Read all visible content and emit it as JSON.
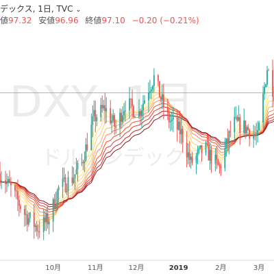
{
  "header": {
    "title": "デックス, 1日, TVC",
    "chevron": "⌄",
    "high_label": "値",
    "high_value": "97.32",
    "low_label": "安値",
    "low_value": "96.96",
    "close_label": "終値",
    "close_value": "97.10",
    "change": "−0.20 (−0.21%)"
  },
  "watermark": {
    "symbol": "DXY, 1日",
    "name": "ドルインデックス"
  },
  "colors": {
    "up": "#26a69a",
    "down": "#ef5350",
    "ribbon": [
      "#fff176",
      "#ffe082",
      "#ffcc80",
      "#ffb74d",
      "#ff8a65",
      "#f4511e",
      "#e53935",
      "#c62828",
      "#8e1b1b"
    ],
    "price_line": "#ef5350"
  },
  "chart_data": {
    "type": "candlestick",
    "instrument": "DXY",
    "interval": "1D",
    "x_ticks": [
      {
        "date": "2018-10-01",
        "label": "10月",
        "bold": false
      },
      {
        "date": "2018-11-01",
        "label": "11月",
        "bold": false
      },
      {
        "date": "2018-12-01",
        "label": "12月",
        "bold": false
      },
      {
        "date": "2019-01-01",
        "label": "2019",
        "bold": true
      },
      {
        "date": "2019-02-01",
        "label": "2月",
        "bold": false
      },
      {
        "date": "2019-03-01",
        "label": "3月",
        "bold": false
      }
    ],
    "xlim": [
      "2018-08-23",
      "2019-03-12"
    ],
    "ylim": [
      93.8,
      98.4
    ],
    "current_price": 97.1,
    "price_path": [
      [
        "2018-08-23",
        95.5
      ],
      [
        "2018-08-31",
        95.2
      ],
      [
        "2018-09-10",
        94.7
      ],
      [
        "2018-09-20",
        94.4
      ],
      [
        "2018-09-28",
        94.6
      ],
      [
        "2018-10-05",
        95.2
      ],
      [
        "2018-10-15",
        95.4
      ],
      [
        "2018-10-22",
        95.7
      ],
      [
        "2018-10-31",
        96.6
      ],
      [
        "2018-11-08",
        96.8
      ],
      [
        "2018-11-16",
        96.4
      ],
      [
        "2018-11-23",
        96.9
      ],
      [
        "2018-12-03",
        96.7
      ],
      [
        "2018-12-10",
        97.2
      ],
      [
        "2018-12-14",
        97.4
      ],
      [
        "2018-12-24",
        96.6
      ],
      [
        "2019-01-03",
        96.3
      ],
      [
        "2019-01-10",
        95.7
      ],
      [
        "2019-01-20",
        96.0
      ],
      [
        "2019-01-31",
        95.6
      ],
      [
        "2019-02-10",
        96.5
      ],
      [
        "2019-02-20",
        96.4
      ],
      [
        "2019-02-28",
        96.2
      ],
      [
        "2019-03-07",
        97.6
      ],
      [
        "2019-03-12",
        97.1
      ]
    ]
  }
}
